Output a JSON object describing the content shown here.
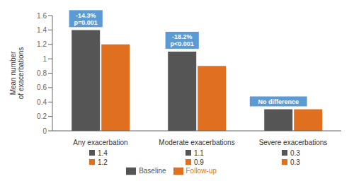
{
  "chart_data": {
    "type": "bar",
    "categories": [
      "Any exacerbation",
      "Moderate exacerbations",
      "Severe exacerbations"
    ],
    "series": [
      {
        "name": "Baseline",
        "color": "#555555",
        "values": [
          1.4,
          1.1,
          0.3
        ]
      },
      {
        "name": "Follow-up",
        "color": "#E07020",
        "values": [
          1.2,
          0.9,
          0.3
        ]
      }
    ],
    "ylabel": "Mean number\nof exacerbations",
    "ylim": [
      0,
      1.6
    ],
    "yticks": [
      0,
      0.2,
      0.4,
      0.6,
      0.8,
      1.0,
      1.2,
      1.4,
      1.6
    ],
    "annotations": [
      {
        "text": "-14.3%\np=0.001",
        "color": "#5B9BD5"
      },
      {
        "text": "-18.2%\np<0.001",
        "color": "#5B9BD5"
      },
      {
        "text": "No difference",
        "color": "#5B9BD5"
      }
    ],
    "data_labels": true,
    "grid": false,
    "legend": "bottom"
  }
}
